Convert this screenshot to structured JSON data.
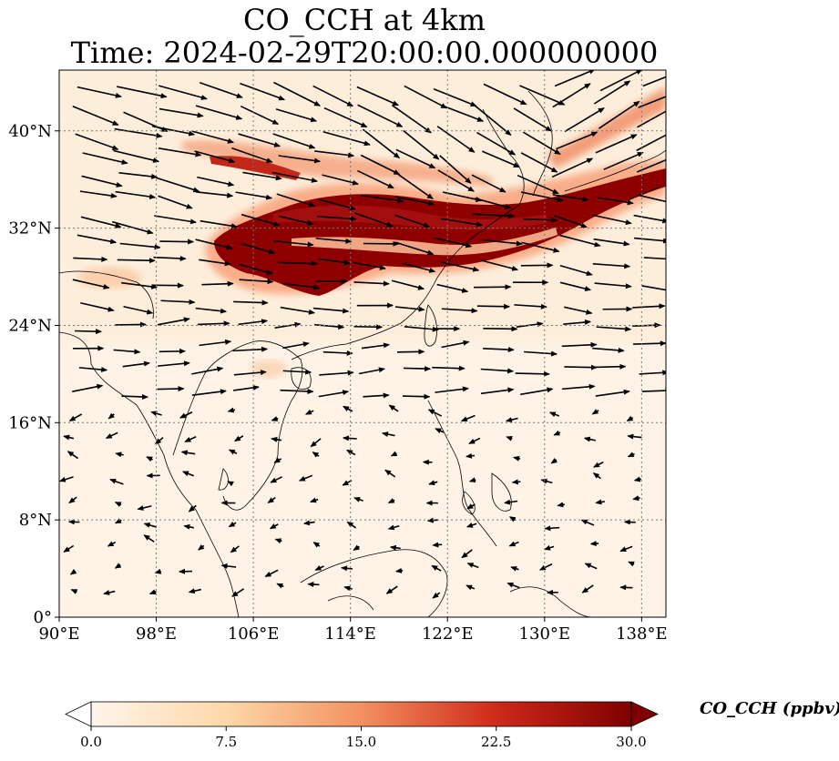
{
  "title": {
    "line1": "CO_CCH at 4km",
    "line2": "Time: 2024-02-29T20:00:00.000000000"
  },
  "map": {
    "lon_range": [
      90,
      140
    ],
    "lat_range": [
      0,
      45
    ],
    "gridlines": "dotted",
    "lon_ticks": [
      {
        "value": 90,
        "label": "90°E"
      },
      {
        "value": 98,
        "label": "98°E"
      },
      {
        "value": 106,
        "label": "106°E"
      },
      {
        "value": 114,
        "label": "114°E"
      },
      {
        "value": 122,
        "label": "122°E"
      },
      {
        "value": 130,
        "label": "130°E"
      },
      {
        "value": 138,
        "label": "138°E"
      }
    ],
    "lat_ticks": [
      {
        "value": 0,
        "label": "0°"
      },
      {
        "value": 8,
        "label": "8°N"
      },
      {
        "value": 16,
        "label": "16°N"
      },
      {
        "value": 24,
        "label": "24°N"
      },
      {
        "value": 32,
        "label": "32°N"
      },
      {
        "value": 40,
        "label": "40°N"
      }
    ],
    "field_colors": [
      "#fff5eb",
      "#fdd49e",
      "#fc8d59",
      "#d7301f",
      "#7f0000"
    ],
    "wind_vectors": "black arrows"
  },
  "colorbar": {
    "label": "CO_CCH (ppbv)",
    "range": [
      0,
      30
    ],
    "ticks": [
      {
        "value": 0,
        "label": "0.0"
      },
      {
        "value": 7.5,
        "label": "7.5"
      },
      {
        "value": 15,
        "label": "15.0"
      },
      {
        "value": 22.5,
        "label": "22.5"
      },
      {
        "value": 30,
        "label": "30.0"
      }
    ],
    "extend": "both"
  }
}
